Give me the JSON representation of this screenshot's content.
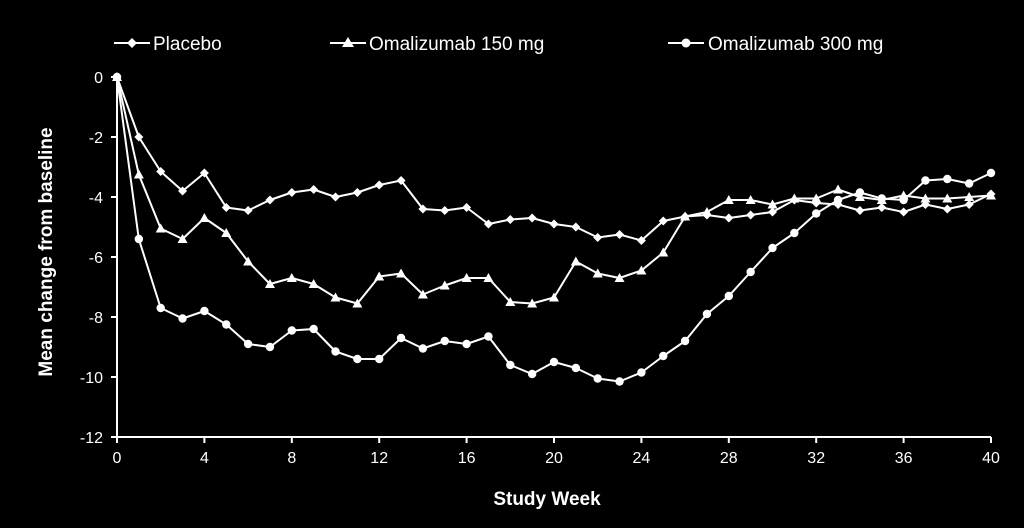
{
  "chart_data": {
    "type": "line",
    "xlabel": "Study Week",
    "ylabel": "Mean change from baseline",
    "xlim": [
      0,
      40
    ],
    "ylim": [
      -12,
      0
    ],
    "xticks": [
      "0",
      "4",
      "8",
      "12",
      "16",
      "20",
      "24",
      "28",
      "32",
      "36",
      "40"
    ],
    "yticks": [
      "0",
      "-2",
      "-4",
      "-6",
      "-8",
      "-10",
      "-12"
    ],
    "grid": false,
    "legend_position": "top",
    "colors": {
      "background": "#000000",
      "line": "#ffffff"
    },
    "x": [
      0,
      1,
      2,
      3,
      4,
      5,
      6,
      7,
      8,
      9,
      10,
      11,
      12,
      13,
      14,
      15,
      16,
      17,
      18,
      19,
      20,
      21,
      22,
      23,
      24,
      25,
      26,
      27,
      28,
      29,
      30,
      31,
      32,
      33,
      34,
      35,
      36,
      37,
      38,
      39,
      40
    ],
    "series": [
      {
        "name": "Placebo",
        "marker": "diamond",
        "values": [
          0,
          -2.0,
          -3.15,
          -3.8,
          -3.2,
          -4.35,
          -4.45,
          -4.1,
          -3.85,
          -3.75,
          -4.0,
          -3.85,
          -3.6,
          -3.45,
          -4.4,
          -4.45,
          -4.35,
          -4.9,
          -4.75,
          -4.7,
          -4.9,
          -5.0,
          -5.35,
          -5.25,
          -5.45,
          -4.8,
          -4.65,
          -4.6,
          -4.7,
          -4.6,
          -4.5,
          -4.1,
          -4.2,
          -4.25,
          -4.45,
          -4.35,
          -4.5,
          -4.25,
          -4.4,
          -4.25,
          -3.9
        ]
      },
      {
        "name": "Omalizumab 150 mg",
        "marker": "triangle",
        "values": [
          0,
          -3.25,
          -5.05,
          -5.4,
          -4.7,
          -5.2,
          -6.15,
          -6.9,
          -6.7,
          -6.9,
          -7.35,
          -7.55,
          -6.65,
          -6.55,
          -7.25,
          -6.95,
          -6.7,
          -6.7,
          -7.5,
          -7.55,
          -7.35,
          -6.15,
          -6.55,
          -6.7,
          -6.45,
          -5.85,
          -4.65,
          -4.5,
          -4.1,
          -4.1,
          -4.25,
          -4.05,
          -4.05,
          -3.75,
          -4.0,
          -4.1,
          -3.95,
          -4.05,
          -4.05,
          -4.0,
          -3.95
        ]
      },
      {
        "name": "Omalizumab 300 mg",
        "marker": "circle",
        "values": [
          0,
          -5.4,
          -7.7,
          -8.05,
          -7.8,
          -8.25,
          -8.9,
          -9.0,
          -8.45,
          -8.4,
          -9.15,
          -9.4,
          -9.4,
          -8.7,
          -9.05,
          -8.8,
          -8.9,
          -8.65,
          -9.6,
          -9.9,
          -9.5,
          -9.7,
          -10.05,
          -10.15,
          -9.85,
          -9.3,
          -8.8,
          -7.9,
          -7.3,
          -6.5,
          -5.7,
          -5.2,
          -4.55,
          -4.1,
          -3.85,
          -4.05,
          -4.1,
          -3.45,
          -3.4,
          -3.55,
          -3.2
        ]
      }
    ]
  }
}
